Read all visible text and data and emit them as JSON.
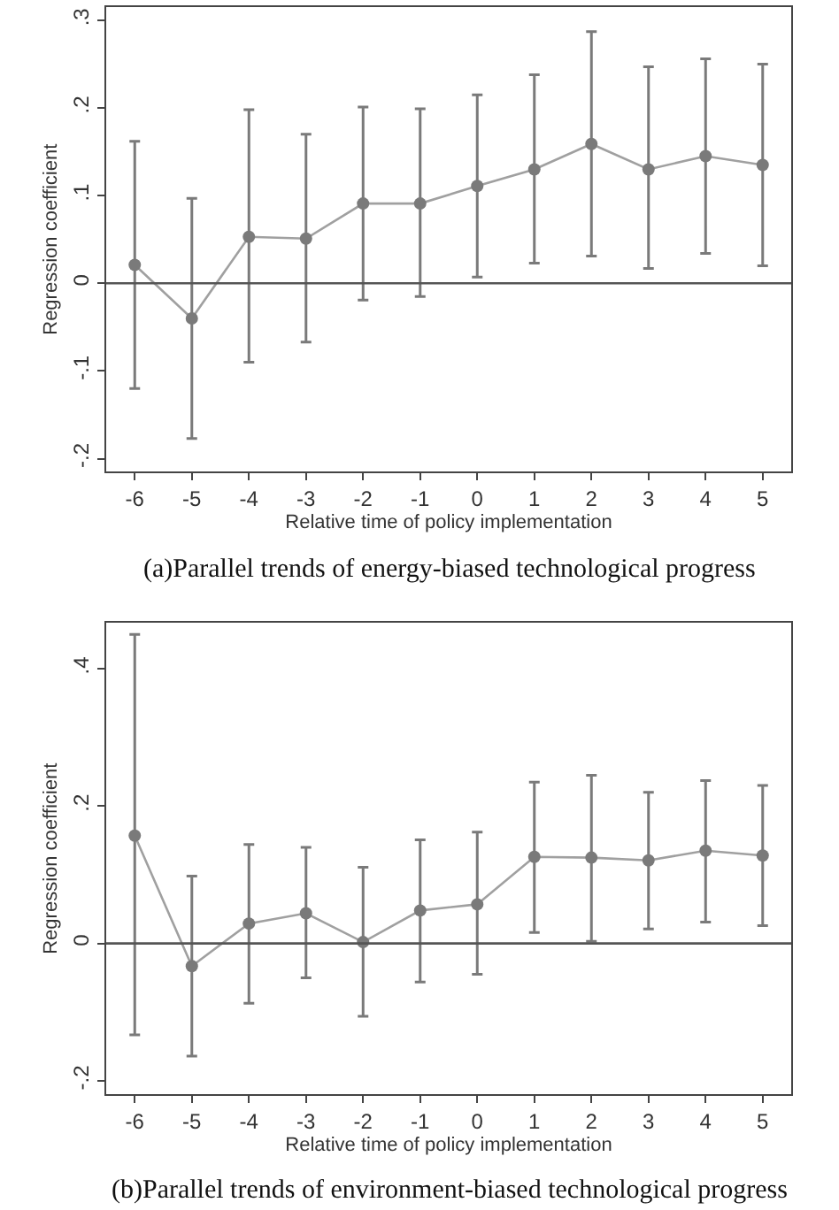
{
  "chart_data": [
    {
      "type": "line",
      "title": "(a)Parallel trends of energy-biased technological progress",
      "xlabel": "Relative time of policy implementation",
      "ylabel": "Regression coefficient",
      "x": [
        -6,
        -5,
        -4,
        -3,
        -2,
        -1,
        0,
        1,
        2,
        3,
        4,
        5
      ],
      "series": [
        {
          "color": "#7a7a7a",
          "values": [
            0.021,
            -0.04,
            0.053,
            0.051,
            0.091,
            0.091,
            0.111,
            0.13,
            0.159,
            0.13,
            0.145,
            0.135
          ],
          "errors": [
            [
              -0.12,
              0.162
            ],
            [
              -0.177,
              0.097
            ],
            [
              -0.09,
              0.198
            ],
            [
              -0.067,
              0.17
            ],
            [
              -0.019,
              0.201
            ],
            [
              -0.015,
              0.199
            ],
            [
              0.007,
              0.215
            ],
            [
              0.023,
              0.238
            ],
            [
              0.031,
              0.287
            ],
            [
              0.017,
              0.247
            ],
            [
              0.034,
              0.256
            ],
            [
              0.02,
              0.25
            ]
          ]
        }
      ],
      "xlim": [
        -6.5,
        5.5
      ],
      "xticks": [
        -6,
        -5,
        -4,
        -3,
        -2,
        -1,
        0,
        1,
        2,
        3,
        4,
        5
      ],
      "ylim": [
        -0.215,
        0.315
      ],
      "yticks": [
        {
          "value": -0.2,
          "label": "-.2"
        },
        {
          "value": -0.1,
          "label": "-.1"
        },
        0,
        {
          "value": 0.1,
          "label": ".1"
        },
        {
          "value": 0.2,
          "label": ".2"
        },
        {
          "value": 0.3,
          "label": ".3"
        }
      ],
      "ref_lines": [
        {
          "axis": "y",
          "value": 0,
          "color": "#555555"
        }
      ],
      "marker": "circle",
      "line_style": "solid"
    },
    {
      "type": "line",
      "title": "(b)Parallel trends of environment-biased technological progress",
      "xlabel": "Relative time of policy implementation",
      "ylabel": "Regression coefficient",
      "x": [
        -6,
        -5,
        -4,
        -3,
        -2,
        -1,
        0,
        1,
        2,
        3,
        4,
        5
      ],
      "series": [
        {
          "color": "#7a7a7a",
          "values": [
            0.157,
            -0.033,
            0.029,
            0.044,
            0.002,
            0.048,
            0.057,
            0.126,
            0.125,
            0.121,
            0.135,
            0.128
          ],
          "errors": [
            [
              -0.133,
              0.45
            ],
            [
              -0.164,
              0.098
            ],
            [
              -0.087,
              0.144
            ],
            [
              -0.05,
              0.14
            ],
            [
              -0.106,
              0.111
            ],
            [
              -0.056,
              0.151
            ],
            [
              -0.045,
              0.162
            ],
            [
              0.016,
              0.235
            ],
            [
              0.003,
              0.245
            ],
            [
              0.021,
              0.22
            ],
            [
              0.031,
              0.237
            ],
            [
              0.026,
              0.23
            ]
          ]
        }
      ],
      "xlim": [
        -6.5,
        5.5
      ],
      "xticks": [
        -6,
        -5,
        -4,
        -3,
        -2,
        -1,
        0,
        1,
        2,
        3,
        4,
        5
      ],
      "ylim": [
        -0.22,
        0.467
      ],
      "yticks": [
        {
          "value": -0.2,
          "label": "-.2"
        },
        0,
        {
          "value": 0.2,
          "label": ".2"
        },
        {
          "value": 0.4,
          "label": ".4"
        }
      ],
      "ref_lines": [
        {
          "axis": "y",
          "value": 0,
          "color": "#555555"
        }
      ],
      "marker": "circle",
      "line_style": "solid"
    }
  ]
}
